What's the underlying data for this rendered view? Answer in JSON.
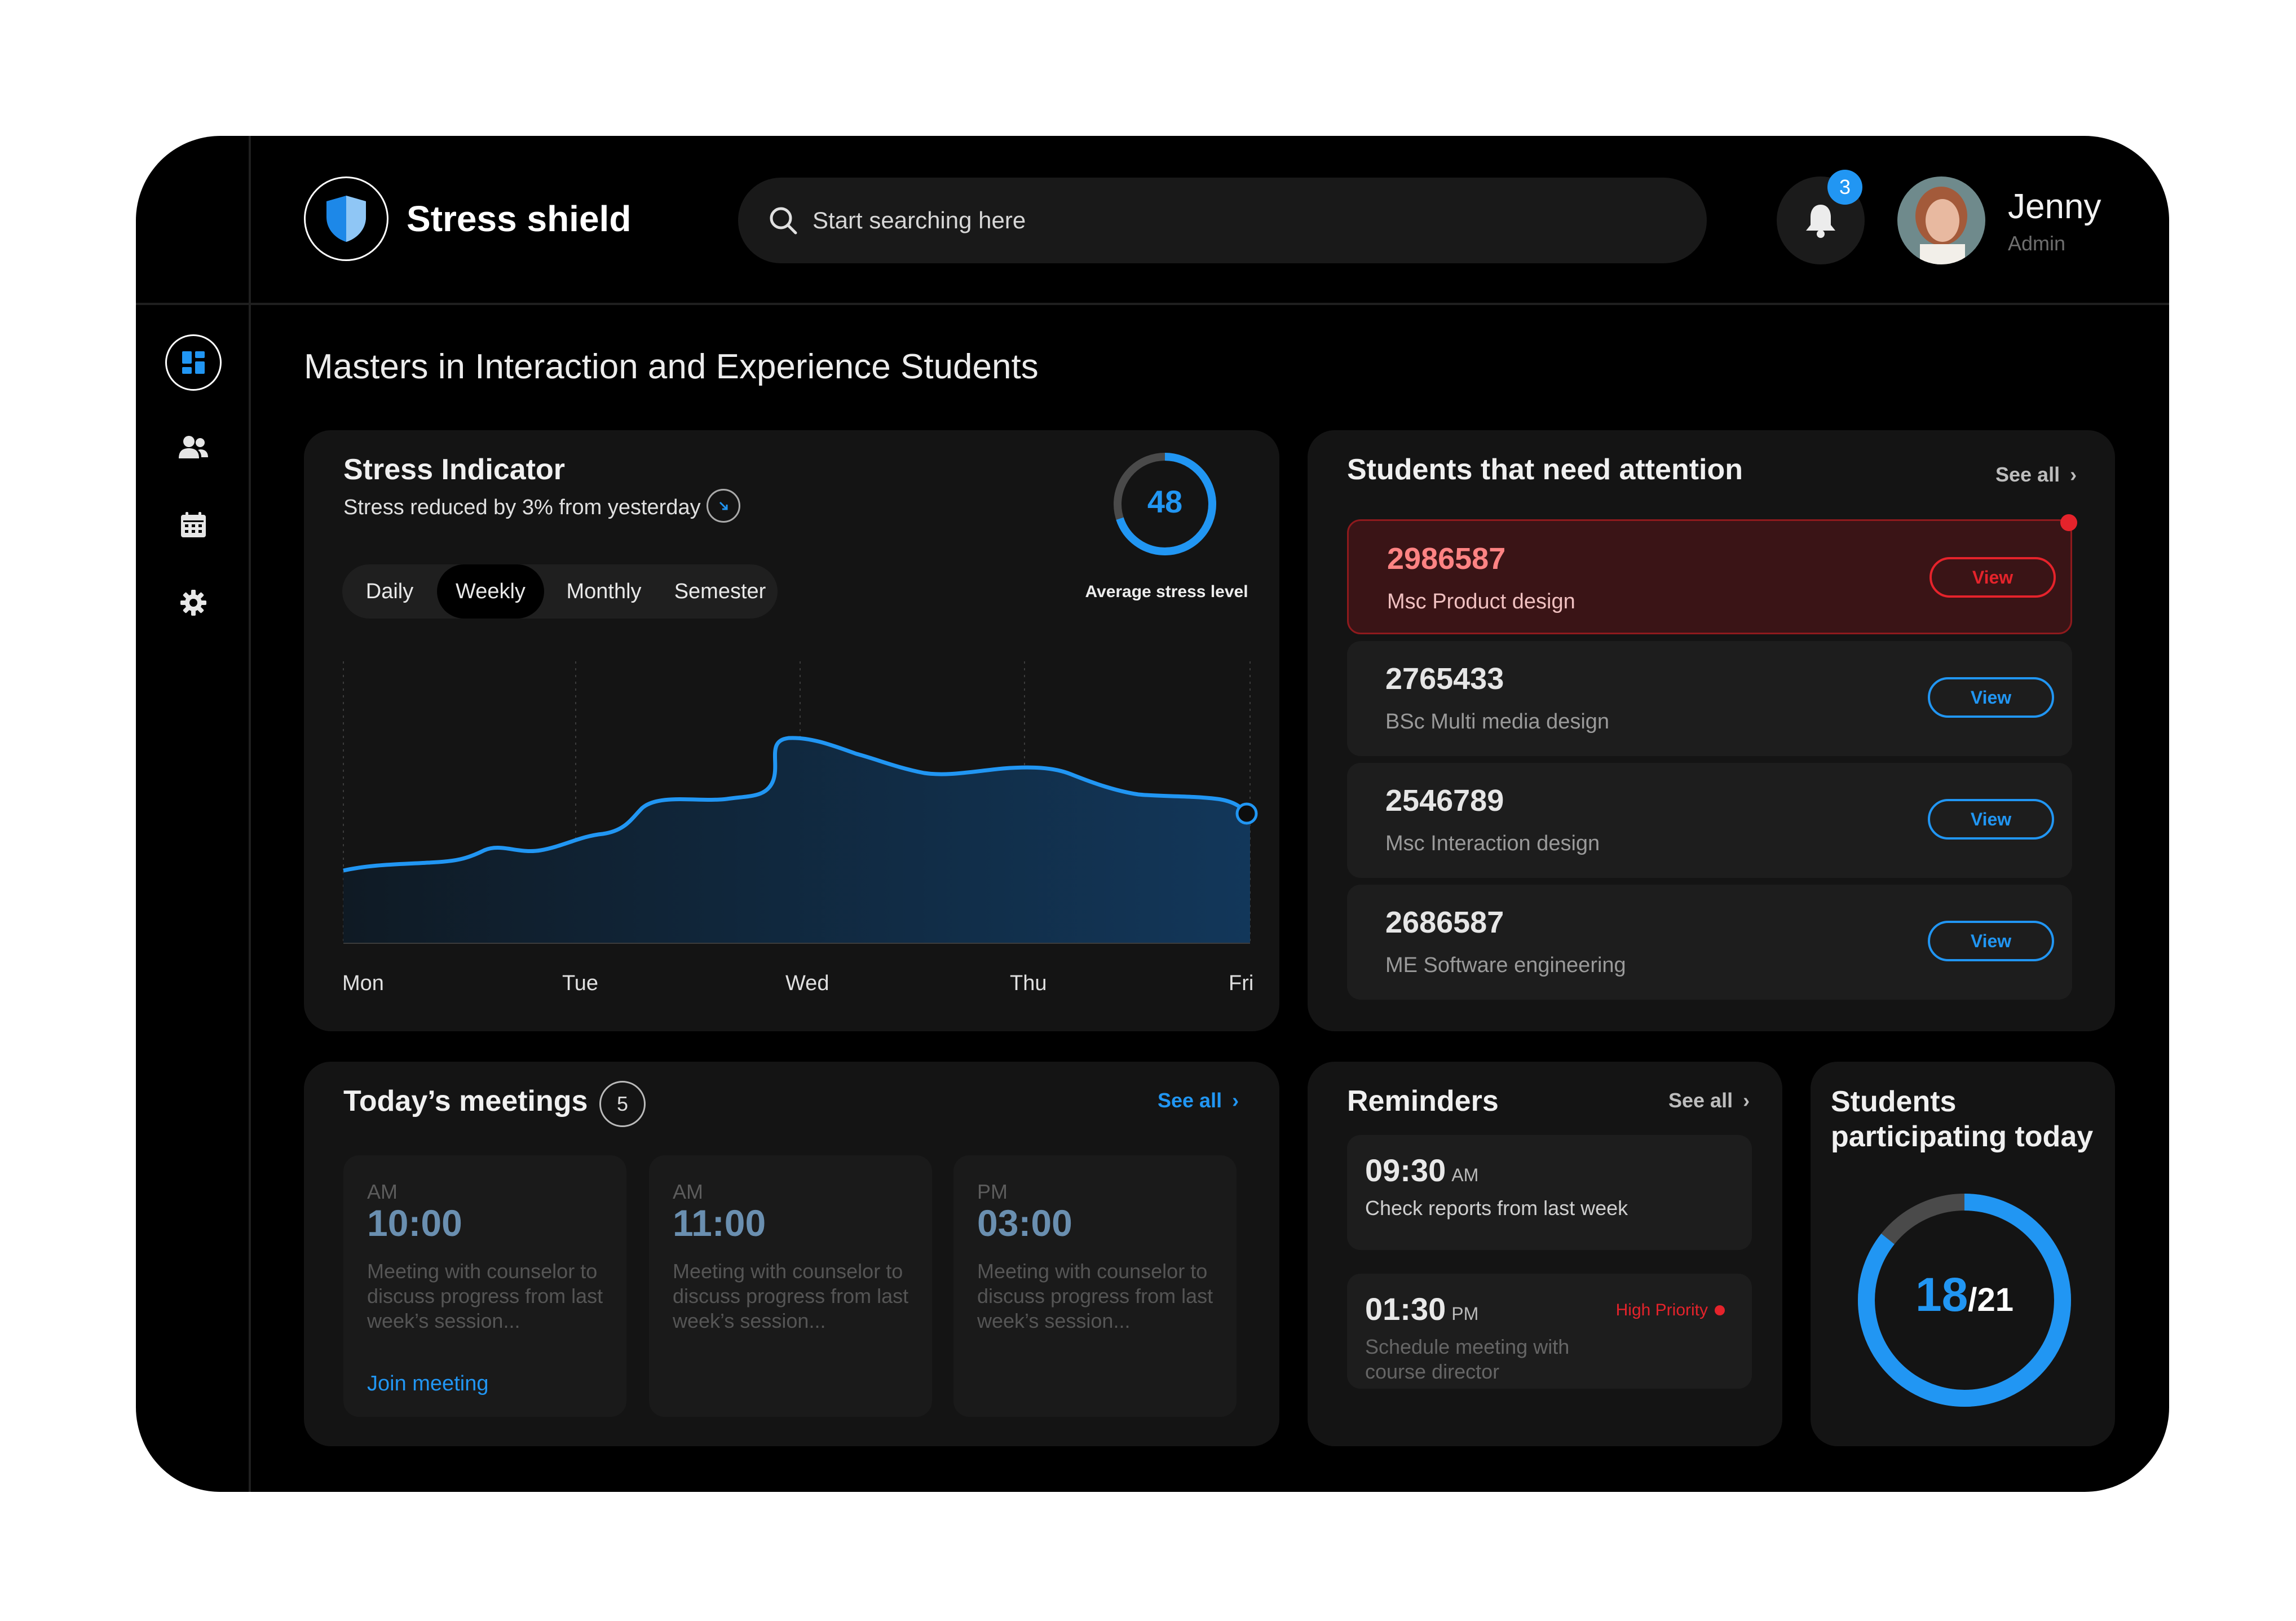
{
  "app": {
    "brand": "Stress shield"
  },
  "search": {
    "placeholder": "Start searching here"
  },
  "notifications": {
    "count": "3"
  },
  "user": {
    "name": "Jenny",
    "role": "Admin"
  },
  "page": {
    "title": "Masters in Interaction and Experience Students"
  },
  "sidebar": {
    "items": [
      "dashboard-icon",
      "users-icon",
      "calendar-icon",
      "gear-icon"
    ]
  },
  "stress": {
    "title": "Stress Indicator",
    "subtitle": "Stress reduced by 3% from yesterday",
    "average": "48",
    "average_fraction": 0.7,
    "average_label": "Average stress level",
    "tabs": [
      "Daily",
      "Weekly",
      "Monthly",
      "Semester"
    ],
    "active_tab": "Weekly"
  },
  "chart_data": {
    "type": "area",
    "x": [
      "Mon",
      "Tue",
      "Wed",
      "Thu",
      "Fri"
    ],
    "accent": "#2196f3"
  },
  "attention": {
    "title": "Students that need attention",
    "see_all": "See all",
    "students": [
      {
        "id": "2986587",
        "program": "Msc Product design",
        "action": "View",
        "alert": true
      },
      {
        "id": "2765433",
        "program": "BSc Multi media design",
        "action": "View"
      },
      {
        "id": "2546789",
        "program": "Msc Interaction design",
        "action": "View"
      },
      {
        "id": "2686587",
        "program": "ME Software engineering",
        "action": "View"
      }
    ]
  },
  "meetings": {
    "title": "Today’s meetings",
    "count": "5",
    "see_all": "See all",
    "items": [
      {
        "ampm": "AM",
        "time": "10:00",
        "desc": "Meeting with counselor to discuss progress from last week’s session...",
        "join": "Join meeting"
      },
      {
        "ampm": "AM",
        "time": "11:00",
        "desc": "Meeting with counselor to discuss progress from last week’s session..."
      },
      {
        "ampm": "PM",
        "time": "03:00",
        "desc": "Meeting with counselor to discuss progress from last week’s session..."
      }
    ]
  },
  "reminders": {
    "title": "Reminders",
    "see_all": "See all",
    "items": [
      {
        "time": "09:30",
        "ampm": "AM",
        "text": "Check reports from last week"
      },
      {
        "time": "01:30",
        "ampm": "PM",
        "text": "Schedule meeting with course director",
        "priority": "High Priority"
      }
    ]
  },
  "participation": {
    "title_line1": "Students",
    "title_line2": "participating today",
    "current": "18",
    "total": "/21",
    "fraction": 0.857
  },
  "colors": {
    "accent": "#2196f3",
    "alert": "#e5232b",
    "background": "#000000",
    "card": "#141414"
  }
}
